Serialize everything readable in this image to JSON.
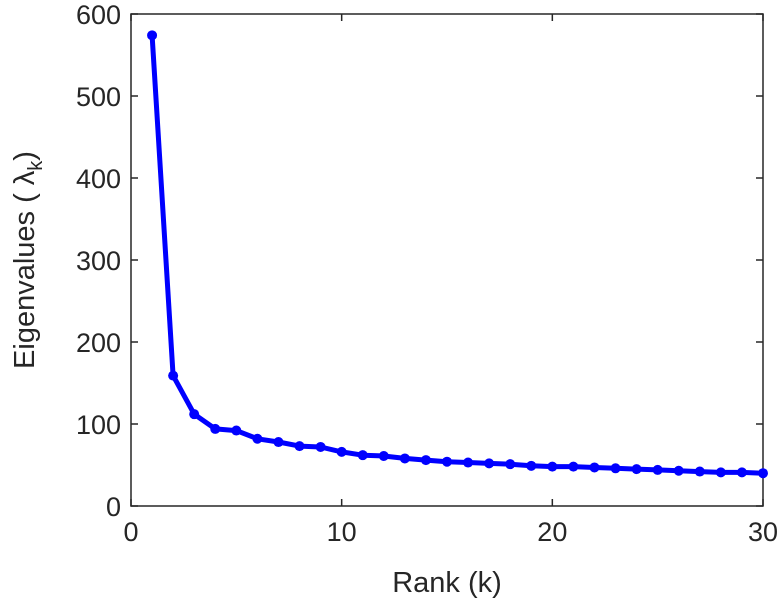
{
  "chart_data": {
    "type": "line",
    "title": "",
    "xlabel": "Rank (k)",
    "ylabel": "Eigenvalues ( λ",
    "ylabel_subscript": "k",
    "ylabel_close": ")",
    "xlim": [
      0,
      30
    ],
    "ylim": [
      0,
      600
    ],
    "xticks": [
      0,
      10,
      20,
      30
    ],
    "yticks": [
      0,
      100,
      200,
      300,
      400,
      500,
      600
    ],
    "grid": false,
    "legend": "none",
    "line_color": "#0000ff",
    "series": [
      {
        "x": [
          1,
          2,
          3,
          4,
          5,
          6,
          7,
          8,
          9,
          10,
          11,
          12,
          13,
          14,
          15,
          16,
          17,
          18,
          19,
          20,
          21,
          22,
          23,
          24,
          25,
          26,
          27,
          28,
          29,
          30
        ],
        "values": [
          574,
          159,
          112,
          94,
          92,
          82,
          78,
          73,
          72,
          66,
          62,
          61,
          58,
          56,
          54,
          53,
          52,
          51,
          49,
          48,
          48,
          47,
          46,
          45,
          44,
          43,
          42,
          41,
          41,
          40
        ]
      }
    ]
  }
}
